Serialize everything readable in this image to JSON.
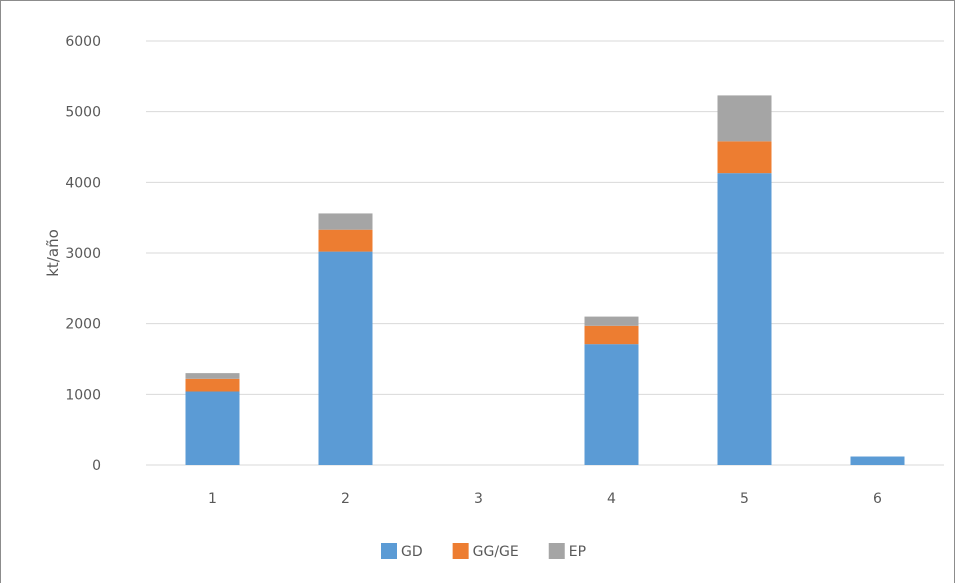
{
  "chart_data": {
    "type": "bar",
    "stacked": true,
    "title": "",
    "xlabel": "",
    "ylabel": "kt/año",
    "categories": [
      "1",
      "2",
      "3",
      "4",
      "5",
      "6"
    ],
    "ylim": [
      0,
      6000
    ],
    "yticks": [
      "0",
      "1000",
      "2000",
      "3000",
      "4000",
      "5000",
      "6000"
    ],
    "grid": true,
    "legend_position": "bottom",
    "series": [
      {
        "name": "GD",
        "color": "#5b9bd5",
        "values": [
          1040,
          3020,
          0,
          1710,
          4130,
          120
        ]
      },
      {
        "name": "GG/GE",
        "color": "#ed7d31",
        "values": [
          180,
          310,
          0,
          260,
          450,
          0
        ]
      },
      {
        "name": "EP",
        "color": "#a5a5a5",
        "values": [
          80,
          230,
          0,
          130,
          650,
          0
        ]
      }
    ]
  }
}
